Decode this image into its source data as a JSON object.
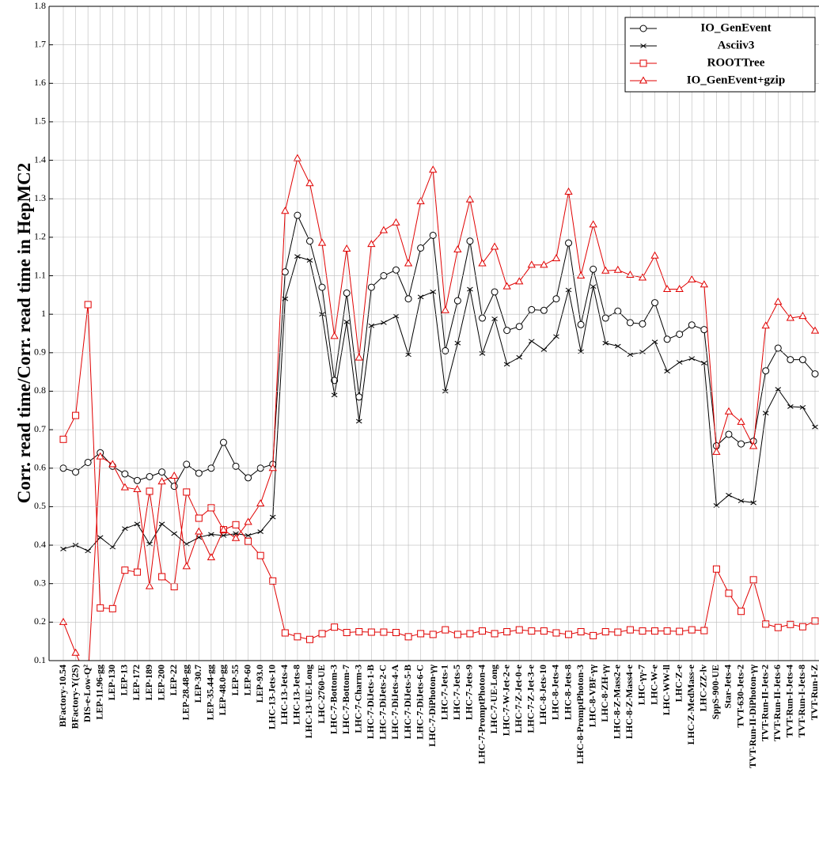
{
  "chart_data": {
    "type": "line",
    "ylabel": "Corr. read time/Corr. read time in HepMC2",
    "categories": [
      "BFactory-10.54",
      "BFactory-Υ(2S)",
      "DIS-e-Low-Q²",
      "LEP-11.96-gg",
      "LEP-130",
      "LEP-13",
      "LEP-172",
      "LEP-189",
      "LEP-200",
      "LEP-22",
      "LEP-28.48-gg",
      "LEP-30.7",
      "LEP-35.44-gg",
      "LEP-48.0-gg",
      "LEP-55",
      "LEP-60",
      "LEP-93.0",
      "LHC-13-Jets-10",
      "LHC-13-Jets-4",
      "LHC-13-Jets-8",
      "LHC-13-UE-Long",
      "LHC-2760-UE",
      "LHC-7-Bottom-3",
      "LHC-7-Bottom-7",
      "LHC-7-Charm-3",
      "LHC-7-DiJets-1-B",
      "LHC-7-DiJets-2-C",
      "LHC-7-DiJets-4-A",
      "LHC-7-DiJets-5-B",
      "LHC-7-DiJets-6-C",
      "LHC-7-DiPhoton-γγ",
      "LHC-7-Jets-1",
      "LHC-7-Jets-5",
      "LHC-7-Jets-9",
      "LHC-7-PromptPhoton-4",
      "LHC-7-UE-Long",
      "LHC-7-W-Jet-2-e",
      "LHC-7-Z-Jet-0-e",
      "LHC-7-Z-Jet-3-e",
      "LHC-8-Jets-10",
      "LHC-8-Jets-4",
      "LHC-8-Jets-8",
      "LHC-8-PromptPhoton-3",
      "LHC-8-VBF-γγ",
      "LHC-8-ZH-γγ",
      "LHC-8-Z-Mass2-e",
      "LHC-8-Z-Mass4-e",
      "LHC-γγ-7",
      "LHC-W-e",
      "LHC-WW-ll",
      "LHC-Z-e",
      "LHC-Z-MedMass-e",
      "LHC-ZZ-lv",
      "SppS-900-UE",
      "Star-Jets-4",
      "TVT-630-Jets-2",
      "TVT-Run-II-DiPhoton-γγ",
      "TVT-Run-II-Jets-2",
      "TVT-Run-II-Jets-6",
      "TVT-Run-I-Jets-4",
      "TVT-Run-I-Jets-8",
      "TVT-Run-I-Z"
    ],
    "series": [
      {
        "name": "IO_GenEvent",
        "color": "#000000",
        "marker": "circle",
        "values": [
          0.6,
          0.59,
          0.615,
          0.64,
          0.605,
          0.585,
          0.568,
          0.578,
          0.59,
          0.553,
          0.61,
          0.587,
          0.6,
          0.667,
          0.605,
          0.575,
          0.6,
          0.61,
          1.11,
          1.257,
          1.19,
          1.07,
          0.828,
          1.055,
          0.785,
          1.07,
          1.1,
          1.115,
          1.04,
          1.172,
          1.205,
          0.905,
          1.035,
          1.19,
          0.99,
          1.058,
          0.958,
          0.968,
          1.012,
          1.01,
          1.04,
          1.185,
          0.973,
          1.117,
          0.99,
          1.008,
          0.978,
          0.975,
          1.03,
          0.935,
          0.948,
          0.972,
          0.96,
          0.658,
          0.688,
          0.663,
          0.67,
          0.853,
          0.912,
          0.882,
          0.882,
          0.845
        ]
      },
      {
        "name": "Asciiv3",
        "color": "#000000",
        "marker": "x",
        "values": [
          0.39,
          0.4,
          0.385,
          0.42,
          0.395,
          0.443,
          0.455,
          0.403,
          0.455,
          0.43,
          0.403,
          0.42,
          0.428,
          0.425,
          0.43,
          0.425,
          0.435,
          0.473,
          1.04,
          1.15,
          1.14,
          1.0,
          0.79,
          0.98,
          0.722,
          0.97,
          0.978,
          0.995,
          0.895,
          1.045,
          1.058,
          0.8,
          0.925,
          1.065,
          0.898,
          0.988,
          0.87,
          0.888,
          0.93,
          0.908,
          0.942,
          1.063,
          0.903,
          1.072,
          0.925,
          0.917,
          0.895,
          0.902,
          0.928,
          0.852,
          0.875,
          0.885,
          0.873,
          0.503,
          0.53,
          0.515,
          0.51,
          0.743,
          0.805,
          0.76,
          0.758,
          0.707
        ]
      },
      {
        "name": "ROOTTree",
        "color": "#e00000",
        "marker": "square",
        "values": [
          0.675,
          0.737,
          1.025,
          0.237,
          0.235,
          0.335,
          0.33,
          0.54,
          0.318,
          0.292,
          0.538,
          0.47,
          0.497,
          0.44,
          0.453,
          0.41,
          0.373,
          0.307,
          0.172,
          0.162,
          0.155,
          0.17,
          0.187,
          0.173,
          0.175,
          0.174,
          0.174,
          0.173,
          0.162,
          0.17,
          0.168,
          0.18,
          0.168,
          0.17,
          0.177,
          0.17,
          0.175,
          0.18,
          0.177,
          0.177,
          0.172,
          0.168,
          0.175,
          0.165,
          0.175,
          0.174,
          0.18,
          0.177,
          0.177,
          0.177,
          0.176,
          0.18,
          0.178,
          0.338,
          0.275,
          0.228,
          0.31,
          0.195,
          0.186,
          0.194,
          0.188,
          0.203
        ]
      },
      {
        "name": "IO_GenEvent+gzip",
        "color": "#e00000",
        "marker": "triangle",
        "values": [
          0.2,
          0.12,
          0.05,
          0.63,
          0.61,
          0.55,
          0.545,
          0.293,
          0.565,
          0.58,
          0.345,
          0.435,
          0.368,
          0.44,
          0.418,
          0.46,
          0.508,
          0.6,
          1.268,
          1.405,
          1.34,
          1.185,
          0.943,
          1.17,
          0.887,
          1.182,
          1.218,
          1.238,
          1.132,
          1.293,
          1.375,
          1.01,
          1.168,
          1.298,
          1.132,
          1.175,
          1.072,
          1.085,
          1.128,
          1.128,
          1.145,
          1.318,
          1.1,
          1.233,
          1.113,
          1.115,
          1.102,
          1.095,
          1.152,
          1.065,
          1.065,
          1.09,
          1.077,
          0.642,
          0.747,
          0.72,
          0.657,
          0.97,
          1.032,
          0.99,
          0.995,
          0.957
        ]
      }
    ],
    "ylim": [
      0.1,
      1.8
    ],
    "yticks": [
      0.1,
      0.2,
      0.3,
      0.4,
      0.5,
      0.6,
      0.7,
      0.8,
      0.9,
      1,
      1.1,
      1.2,
      1.3,
      1.4,
      1.5,
      1.6,
      1.7,
      1.8
    ],
    "grid": true,
    "legend": "upper right"
  }
}
